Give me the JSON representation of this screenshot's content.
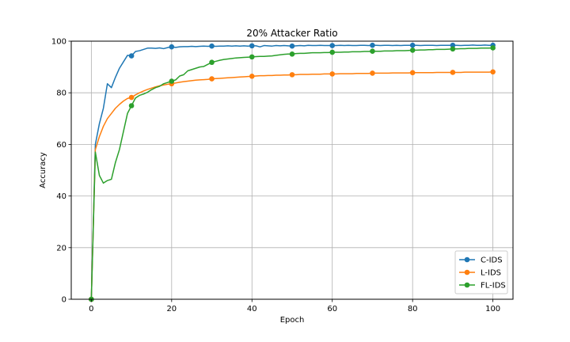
{
  "chart_data": {
    "type": "line",
    "title": "20% Attacker Ratio",
    "xlabel": "Epoch",
    "ylabel": "Accuracy",
    "xlim": [
      -5,
      105
    ],
    "ylim": [
      0,
      100
    ],
    "xticks": [
      0,
      20,
      40,
      60,
      80,
      100
    ],
    "yticks": [
      0,
      20,
      40,
      60,
      80,
      100
    ],
    "grid": true,
    "legend_position": "lower right",
    "marker_every": 10,
    "series": [
      {
        "name": "C-IDS",
        "color": "#1f77b4",
        "x": [
          0,
          1,
          2,
          3,
          4,
          5,
          6,
          7,
          8,
          9,
          10,
          11,
          12,
          13,
          14,
          15,
          16,
          17,
          18,
          19,
          20,
          21,
          22,
          23,
          24,
          25,
          26,
          27,
          28,
          29,
          30,
          31,
          32,
          33,
          34,
          35,
          36,
          37,
          38,
          39,
          40,
          41,
          42,
          43,
          44,
          45,
          46,
          47,
          48,
          49,
          50,
          51,
          52,
          53,
          54,
          55,
          56,
          57,
          58,
          59,
          60,
          61,
          62,
          63,
          64,
          65,
          66,
          67,
          68,
          69,
          70,
          71,
          72,
          73,
          74,
          75,
          76,
          77,
          78,
          79,
          80,
          81,
          82,
          83,
          84,
          85,
          86,
          87,
          88,
          89,
          90,
          91,
          92,
          93,
          94,
          95,
          96,
          97,
          98,
          99,
          100
        ],
        "y": [
          0,
          60,
          68,
          74,
          83.5,
          82,
          86,
          89.5,
          92,
          94.5,
          94.3,
          96,
          96.3,
          96.8,
          97.3,
          97.3,
          97.2,
          97.4,
          97.1,
          97.5,
          97.8,
          97.6,
          97.8,
          97.9,
          97.9,
          98.0,
          97.9,
          98.0,
          98.1,
          98.0,
          98.1,
          98.0,
          98.1,
          98.1,
          98.2,
          98.1,
          98.2,
          98.1,
          98.2,
          98.1,
          98.2,
          98.2,
          97.8,
          98.3,
          98.2,
          98.1,
          98.3,
          98.2,
          98.3,
          98.2,
          98.1,
          98.2,
          98.3,
          98.2,
          98.4,
          98.3,
          98.3,
          98.4,
          98.3,
          98.3,
          98.3,
          98.3,
          98.4,
          98.3,
          98.4,
          98.3,
          98.3,
          98.4,
          98.4,
          98.3,
          98.4,
          98.4,
          98.3,
          98.4,
          98.4,
          98.3,
          98.4,
          98.3,
          98.4,
          98.4,
          98.4,
          98.4,
          98.3,
          98.4,
          98.4,
          98.4,
          98.3,
          98.4,
          98.4,
          98.4,
          98.4,
          98.4,
          98.3,
          98.4,
          98.4,
          98.5,
          98.4,
          98.4,
          98.5,
          98.4,
          98.4
        ]
      },
      {
        "name": "L-IDS",
        "color": "#ff7f0e",
        "x": [
          0,
          1,
          2,
          3,
          4,
          5,
          6,
          7,
          8,
          9,
          10,
          11,
          12,
          13,
          14,
          15,
          16,
          17,
          18,
          19,
          20,
          21,
          22,
          23,
          24,
          25,
          26,
          27,
          28,
          29,
          30,
          31,
          32,
          33,
          34,
          35,
          36,
          37,
          38,
          39,
          40,
          41,
          42,
          43,
          44,
          45,
          46,
          47,
          48,
          49,
          50,
          51,
          52,
          53,
          54,
          55,
          56,
          57,
          58,
          59,
          60,
          61,
          62,
          63,
          64,
          65,
          66,
          67,
          68,
          69,
          70,
          71,
          72,
          73,
          74,
          75,
          76,
          77,
          78,
          79,
          80,
          81,
          82,
          83,
          84,
          85,
          86,
          87,
          88,
          89,
          90,
          91,
          92,
          93,
          94,
          95,
          96,
          97,
          98,
          99,
          100
        ],
        "y": [
          0,
          58,
          63,
          67,
          70,
          72,
          74,
          75.5,
          76.8,
          77.8,
          78.2,
          79.2,
          80,
          80.7,
          81.3,
          81.8,
          82.3,
          82.7,
          83,
          83.3,
          83.5,
          83.8,
          84.1,
          84.3,
          84.5,
          84.7,
          84.9,
          85.0,
          85.1,
          85.2,
          85.4,
          85.5,
          85.6,
          85.7,
          85.8,
          85.9,
          86.0,
          86.1,
          86.2,
          86.3,
          86.4,
          86.5,
          86.6,
          86.6,
          86.7,
          86.7,
          86.8,
          86.8,
          86.9,
          86.9,
          87.0,
          87.0,
          87.1,
          87.1,
          87.1,
          87.2,
          87.2,
          87.2,
          87.3,
          87.3,
          87.3,
          87.3,
          87.4,
          87.4,
          87.4,
          87.4,
          87.5,
          87.5,
          87.5,
          87.5,
          87.6,
          87.6,
          87.6,
          87.6,
          87.6,
          87.7,
          87.7,
          87.7,
          87.7,
          87.7,
          87.8,
          87.8,
          87.8,
          87.8,
          87.8,
          87.8,
          87.9,
          87.9,
          87.9,
          87.9,
          87.9,
          87.9,
          87.9,
          88.0,
          88.0,
          88.0,
          88.0,
          88.0,
          88.0,
          88.0,
          88.1
        ]
      },
      {
        "name": "FL-IDS",
        "color": "#2ca02c",
        "x": [
          0,
          1,
          2,
          3,
          4,
          5,
          6,
          7,
          8,
          9,
          10,
          11,
          12,
          13,
          14,
          15,
          16,
          17,
          18,
          19,
          20,
          21,
          22,
          23,
          24,
          25,
          26,
          27,
          28,
          29,
          30,
          31,
          32,
          33,
          34,
          35,
          36,
          37,
          38,
          39,
          40,
          41,
          42,
          43,
          44,
          45,
          46,
          47,
          48,
          49,
          50,
          51,
          52,
          53,
          54,
          55,
          56,
          57,
          58,
          59,
          60,
          61,
          62,
          63,
          64,
          65,
          66,
          67,
          68,
          69,
          70,
          71,
          72,
          73,
          74,
          75,
          76,
          77,
          78,
          79,
          80,
          81,
          82,
          83,
          84,
          85,
          86,
          87,
          88,
          89,
          90,
          91,
          92,
          93,
          94,
          95,
          96,
          97,
          98,
          99,
          100
        ],
        "y": [
          0,
          57,
          48,
          45,
          46,
          46.5,
          53,
          58,
          65,
          72,
          75,
          78,
          79,
          79.5,
          80.2,
          81.2,
          82,
          82.5,
          83.5,
          84,
          84.5,
          85,
          86.5,
          87,
          88.5,
          89,
          89.5,
          90,
          90.2,
          91,
          91.8,
          92.2,
          92.6,
          92.9,
          93.1,
          93.3,
          93.5,
          93.6,
          93.7,
          93.8,
          93.9,
          94.0,
          94.1,
          94.1,
          94.2,
          94.3,
          94.5,
          94.7,
          94.9,
          95.0,
          95.0,
          95.2,
          95.3,
          95.3,
          95.4,
          95.5,
          95.5,
          95.5,
          95.6,
          95.6,
          95.7,
          95.7,
          95.7,
          95.8,
          95.8,
          95.9,
          95.9,
          95.9,
          96.0,
          96.0,
          96.1,
          96.1,
          96.1,
          96.2,
          96.2,
          96.2,
          96.3,
          96.3,
          96.3,
          96.4,
          96.5,
          96.5,
          96.6,
          96.6,
          96.7,
          96.7,
          96.8,
          96.8,
          96.8,
          96.9,
          97.0,
          97.0,
          97.1,
          97.1,
          97.2,
          97.2,
          97.2,
          97.3,
          97.3,
          97.3,
          97.4
        ]
      }
    ]
  }
}
